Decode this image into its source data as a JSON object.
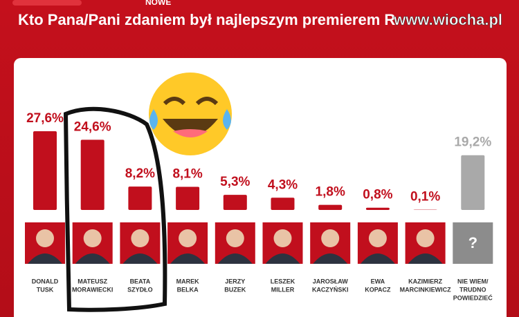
{
  "chart_data": {
    "type": "bar",
    "badge": "NOWE",
    "title": "Kto Pana/Pani zdaniem był najlepszym premierem R",
    "watermark": "www.wiocha.pl",
    "categories": [
      [
        "DONALD",
        "TUSK"
      ],
      [
        "MATEUSZ",
        "MORAWIECKI"
      ],
      [
        "BEATA",
        "SZYDŁO"
      ],
      [
        "MAREK",
        "BELKA"
      ],
      [
        "JERZY",
        "BUZEK"
      ],
      [
        "LESZEK",
        "MILLER"
      ],
      [
        "JAROSŁAW",
        "KACZYŃSKI"
      ],
      [
        "EWA",
        "KOPACZ"
      ],
      [
        "KAZIMIERZ",
        "MARCINKIEWICZ"
      ],
      [
        "NIE WIEM/",
        "TRUDNO",
        "POWIEDZIEĆ"
      ]
    ],
    "values": [
      27.6,
      24.6,
      8.2,
      8.1,
      5.3,
      4.3,
      1.8,
      0.8,
      0.1,
      19.2
    ],
    "value_labels": [
      "27,6%",
      "24,6%",
      "8,2%",
      "8,1%",
      "5,3%",
      "4,3%",
      "1,8%",
      "0,8%",
      "0,1%",
      "19,2%"
    ],
    "colors": [
      "#c10f1d",
      "#c10f1d",
      "#c10f1d",
      "#c10f1d",
      "#c10f1d",
      "#c10f1d",
      "#c10f1d",
      "#c10f1d",
      "#c10f1d",
      "#a9a9a9"
    ],
    "unknown_mark": "?"
  }
}
